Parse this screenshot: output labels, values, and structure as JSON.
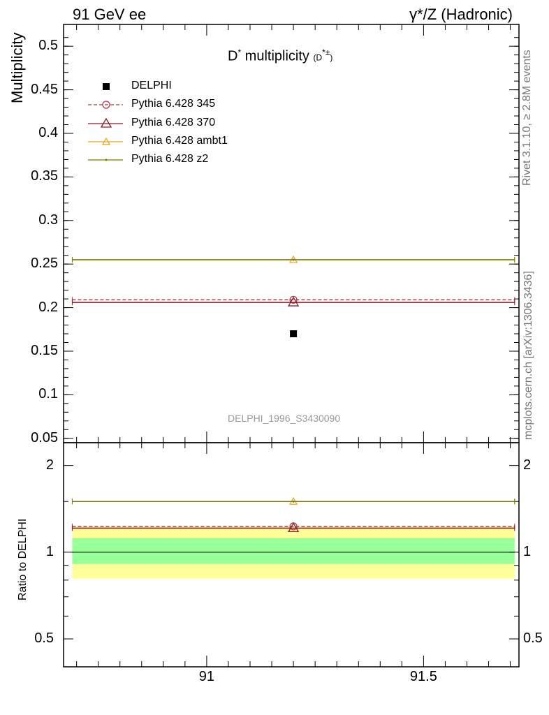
{
  "header": {
    "left": "91 GeV ee",
    "right": "γ*/Z (Hadronic)"
  },
  "side_labels": {
    "rivet": "Rivet 3.1.10, ≥ 2.8M events",
    "mcplots": "mcplots.cern.ch [arXiv:1306.3436]"
  },
  "analysis_tag": "DELPHI_1996_S3430090",
  "colors": {
    "data": "#000000",
    "p345": "#b03a48",
    "p370": "#8b1a2b",
    "ambt1": "#e8a317",
    "z2": "#7a7a00",
    "band_inner": "#99ff99",
    "band_outer": "#ffff99"
  },
  "chart_data": [
    {
      "type": "scatter",
      "panel": "main",
      "title_main": "D",
      "title_sup": "*",
      "title_rest": " multiplicity",
      "title_paren": "(D",
      "title_paren_sup": "*±",
      "title_paren_end": ")",
      "ylabel": "Multiplicity",
      "xlim": [
        90.67,
        91.72
      ],
      "ylim": [
        0.045,
        0.525
      ],
      "xticks": [
        91,
        91.5
      ],
      "yticks": [
        0.05,
        0.1,
        0.15,
        0.2,
        0.25,
        0.3,
        0.35,
        0.4,
        0.45,
        0.5
      ],
      "ytick_labels": [
        "0.05",
        "0.1",
        "0.15",
        "0.2",
        "0.25",
        "0.3",
        "0.35",
        "0.4",
        "0.45",
        "0.5"
      ],
      "x_range": [
        90.69,
        91.71
      ],
      "x_center": 91.2,
      "series": [
        {
          "name": "DELPHI",
          "key": "data",
          "y": 0.17,
          "marker": "square",
          "style": "point"
        },
        {
          "name": "Pythia 6.428 345",
          "key": "p345",
          "y": 0.209,
          "marker": "circle",
          "style": "dashed"
        },
        {
          "name": "Pythia 6.428 370",
          "key": "p370",
          "y": 0.206,
          "marker": "triangle",
          "style": "solid"
        },
        {
          "name": "Pythia 6.428 ambt1",
          "key": "ambt1",
          "y": 0.255,
          "marker": "triangle-small",
          "style": "solid"
        },
        {
          "name": "Pythia 6.428 z2",
          "key": "z2",
          "y": 0.255,
          "marker": "dot",
          "style": "solid"
        }
      ]
    },
    {
      "type": "scatter",
      "panel": "ratio",
      "ylabel": "Ratio to DELPHI",
      "log_y": true,
      "xlim": [
        90.67,
        91.72
      ],
      "ylim": [
        0.4,
        2.4
      ],
      "xticks": [
        91,
        91.5
      ],
      "xtick_labels": [
        "91",
        "91.5"
      ],
      "yticks": [
        0.5,
        1,
        2
      ],
      "ytick_labels": [
        "0.5",
        "1",
        "2"
      ],
      "band_inner": [
        0.91,
        1.12
      ],
      "band_outer": [
        0.81,
        1.23
      ],
      "series": [
        {
          "name": "Pythia 6.428 345",
          "key": "p345",
          "y": 1.229
        },
        {
          "name": "Pythia 6.428 370",
          "key": "p370",
          "y": 1.212
        },
        {
          "name": "Pythia 6.428 ambt1",
          "key": "ambt1",
          "y": 1.5
        },
        {
          "name": "Pythia 6.428 z2",
          "key": "z2",
          "y": 1.5
        }
      ]
    }
  ]
}
